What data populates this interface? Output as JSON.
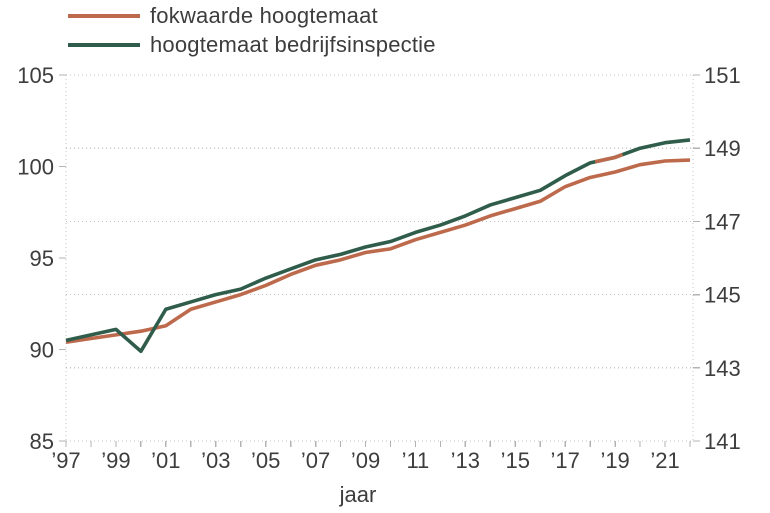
{
  "legend": {
    "items": [
      {
        "label": "fokwaarde hoogtemaat",
        "color": "#bd6a4c"
      },
      {
        "label": "hoogtemaat bedrijfsinspectie",
        "color": "#305d4b"
      }
    ]
  },
  "chart_data": {
    "type": "line",
    "title": "",
    "xlabel": "jaar",
    "ylabel_left": "",
    "ylabel_right": "",
    "x": [
      1997,
      1998,
      1999,
      2000,
      2001,
      2002,
      2003,
      2004,
      2005,
      2006,
      2007,
      2008,
      2009,
      2010,
      2011,
      2012,
      2013,
      2014,
      2015,
      2016,
      2017,
      2018,
      2019,
      2020,
      2021,
      2022
    ],
    "x_tick_label_years": [
      1997,
      1999,
      2001,
      2003,
      2005,
      2007,
      2009,
      2011,
      2013,
      2015,
      2017,
      2019,
      2021
    ],
    "x_tick_labels": [
      "’97",
      "’99",
      "’01",
      "’03",
      "’05",
      "’07",
      "’09",
      "’11",
      "’13",
      "’15",
      "’17",
      "’19",
      "’21"
    ],
    "left_axis": {
      "ticks": [
        85,
        90,
        95,
        100,
        105
      ],
      "range": [
        85,
        105
      ]
    },
    "right_axis": {
      "ticks": [
        141,
        143,
        145,
        147,
        149,
        151
      ],
      "range": [
        141,
        151
      ]
    },
    "grid": "dotted horizontal gridlines at right-axis ticks, dotted left/right/bottom axis lines",
    "legend_position": "top-left",
    "series": [
      {
        "name": "fokwaarde hoogtemaat",
        "color": "#bd6a4c",
        "axis": "left",
        "values": [
          90.4,
          90.6,
          90.8,
          91.0,
          91.3,
          92.2,
          92.6,
          93.0,
          93.5,
          94.1,
          94.6,
          94.9,
          95.3,
          95.5,
          96.0,
          96.4,
          96.8,
          97.3,
          97.7,
          98.1,
          98.9,
          99.4,
          99.7,
          100.1,
          100.3,
          100.35
        ]
      },
      {
        "name": "hoogtemaat bedrijfsinspectie",
        "color": "#305d4b",
        "axis": "left",
        "values": [
          90.5,
          90.8,
          91.1,
          89.9,
          92.2,
          92.6,
          93.0,
          93.3,
          93.9,
          94.4,
          94.9,
          95.2,
          95.6,
          95.9,
          96.4,
          96.8,
          97.3,
          97.9,
          98.3,
          98.7,
          99.5,
          100.2,
          100.5,
          101.0,
          101.3,
          101.45
        ]
      }
    ],
    "overlap_segment": {
      "note": "short stretch where the orange line is drawn over the green line",
      "series_on_top": "fokwaarde hoogtemaat",
      "follows_series": "hoogtemaat bedrijfsinspectie",
      "from_year": 2018.2,
      "to_year": 2019.3
    },
    "colors": {
      "text": "#3d3d3d",
      "grid": "#c4c4c4",
      "ticks": "#b3b3b3",
      "background": "#ffffff"
    }
  }
}
